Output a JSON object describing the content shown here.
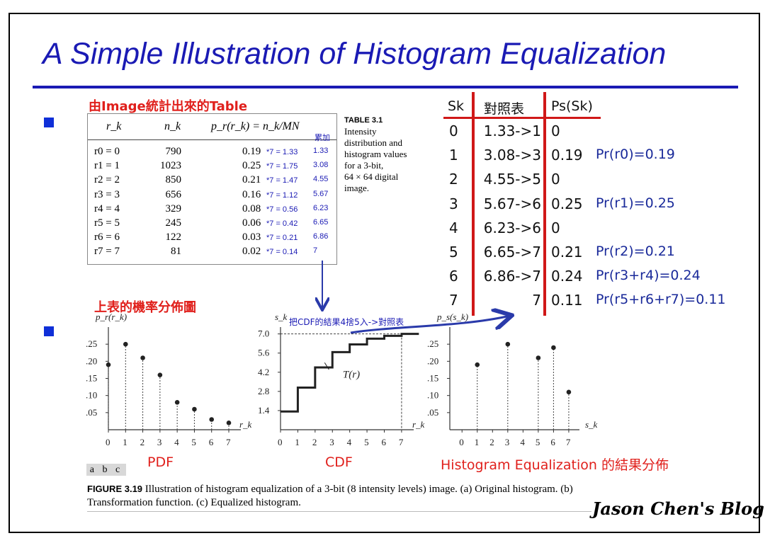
{
  "title": "A Simple Illustration of Histogram Equalization",
  "labels": {
    "table_source": "由Image統計出來的Table",
    "prob_chart": "上表的機率分佈圖",
    "pdf": "PDF",
    "cdf": "CDF",
    "he_result": "Histogram Equalization 的結果分佈",
    "cdf_note": "把CDF的結果4捨5入->對照表"
  },
  "table": {
    "headers": [
      "r_k",
      "n_k",
      "p_r(r_k) = n_k/MN"
    ],
    "cumulative_header": "累加",
    "rows": [
      {
        "r": "r0 = 0",
        "n": "790",
        "p": "0.19",
        "calc": "*7 = 1.33",
        "cum": "1.33"
      },
      {
        "r": "r1 = 1",
        "n": "1023",
        "p": "0.25",
        "calc": "*7 = 1.75",
        "cum": "3.08"
      },
      {
        "r": "r2 = 2",
        "n": "850",
        "p": "0.21",
        "calc": "*7 = 1.47",
        "cum": "4.55"
      },
      {
        "r": "r3 = 3",
        "n": "656",
        "p": "0.16",
        "calc": "*7 = 1.12",
        "cum": "5.67"
      },
      {
        "r": "r4 = 4",
        "n": "329",
        "p": "0.08",
        "calc": "*7 = 0.56",
        "cum": "6.23"
      },
      {
        "r": "r5 = 5",
        "n": "245",
        "p": "0.06",
        "calc": "*7 = 0.42",
        "cum": "6.65"
      },
      {
        "r": "r6 = 6",
        "n": "122",
        "p": "0.03",
        "calc": "*7 = 0.21",
        "cum": "6.86"
      },
      {
        "r": "r7 = 7",
        "n": "81",
        "p": "0.02",
        "calc": "*7 = 0.14",
        "cum": "7"
      }
    ],
    "caption_title": "TABLE 3.1",
    "caption_lines": [
      "Intensity",
      "distribution and",
      "histogram values",
      "for a 3-bit,",
      "64 × 64 digital",
      "image."
    ]
  },
  "mapping": {
    "headers": [
      "Sk",
      "對照表",
      "Ps(Sk)"
    ],
    "rows": [
      {
        "sk": "0",
        "map": "1.33->1",
        "ps": "0",
        "note": ""
      },
      {
        "sk": "1",
        "map": "3.08->3",
        "ps": "0.19",
        "note": "Pr(r0)=0.19"
      },
      {
        "sk": "2",
        "map": "4.55->5",
        "ps": "0",
        "note": ""
      },
      {
        "sk": "3",
        "map": "5.67->6",
        "ps": "0.25",
        "note": "Pr(r1)=0.25"
      },
      {
        "sk": "4",
        "map": "6.23->6",
        "ps": "0",
        "note": ""
      },
      {
        "sk": "5",
        "map": "6.65->7",
        "ps": "0.21",
        "note": "Pr(r2)=0.21"
      },
      {
        "sk": "6",
        "map": "6.86->7",
        "ps": "0.24",
        "note": "Pr(r3+r4)=0.24"
      },
      {
        "sk": "7",
        "map": "7",
        "ps": "0.11",
        "note": "Pr(r5+r6+r7)=0.11"
      }
    ]
  },
  "chart_data": [
    {
      "type": "scatter",
      "ylabel": "p_r(r_k)",
      "xlabel": "r_k",
      "x": [
        0,
        1,
        2,
        3,
        4,
        5,
        6,
        7
      ],
      "values": [
        0.19,
        0.25,
        0.21,
        0.16,
        0.08,
        0.06,
        0.03,
        0.02
      ],
      "yticks": [
        ".05",
        ".10",
        ".15",
        ".20",
        ".25"
      ],
      "xticks": [
        "0",
        "1",
        "2",
        "3",
        "4",
        "5",
        "6",
        "7"
      ],
      "ylim": [
        0,
        0.3
      ]
    },
    {
      "type": "line",
      "ylabel": "s_k",
      "xlabel": "r_k",
      "x": [
        0,
        1,
        2,
        3,
        4,
        5,
        6,
        7
      ],
      "values": [
        1.33,
        3.08,
        4.55,
        5.67,
        6.23,
        6.65,
        6.86,
        7.0
      ],
      "yticks": [
        "1.4",
        "2.8",
        "4.2",
        "5.6",
        "7.0"
      ],
      "xticks": [
        "0",
        "1",
        "2",
        "3",
        "4",
        "5",
        "6",
        "7"
      ],
      "annotation": "T(r)",
      "ylim": [
        0,
        7.5
      ]
    },
    {
      "type": "scatter",
      "ylabel": "p_s(s_k)",
      "xlabel": "s_k",
      "x": [
        1,
        3,
        5,
        6,
        7
      ],
      "values": [
        0.19,
        0.25,
        0.21,
        0.24,
        0.11
      ],
      "yticks": [
        ".05",
        ".10",
        ".15",
        ".20",
        ".25"
      ],
      "xticks": [
        "0",
        "1",
        "2",
        "3",
        "4",
        "5",
        "6",
        "7"
      ],
      "ylim": [
        0,
        0.3
      ]
    }
  ],
  "figure": {
    "panel_labels": "a b c",
    "caption_bold": "FIGURE 3.19",
    "caption_text": " Illustration of histogram equalization of a 3-bit (8 intensity levels) image. (a) Original histogram. (b) Transformation function. (c) Equalized histogram."
  },
  "signature": "Jason Chen's Blog",
  "colors": {
    "title": "#1a1ab4",
    "accent_red": "#e0201c",
    "note_blue": "#1a2a9a"
  }
}
